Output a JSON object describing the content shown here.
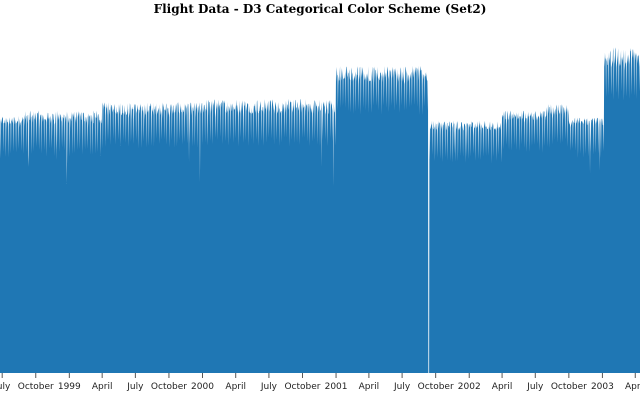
{
  "chart_data": {
    "type": "area",
    "title": "Flight Data - D3 Categorical Color Scheme (Set2)",
    "xlabel": "",
    "ylabel": "",
    "colors": {
      "fill": "#1f77b4"
    },
    "axis": {
      "x_start": "1998-06-25",
      "x_end": "2003-04-14",
      "y_range": [
        0,
        21
      ],
      "y_axis_shown": false,
      "grid": false
    },
    "ticks": [
      {
        "date": "1998-07-01",
        "label": "July"
      },
      {
        "date": "1998-10-01",
        "label": "October"
      },
      {
        "date": "1999-01-01",
        "label": "1999"
      },
      {
        "date": "1999-04-01",
        "label": "April"
      },
      {
        "date": "1999-07-01",
        "label": "July"
      },
      {
        "date": "1999-10-01",
        "label": "October"
      },
      {
        "date": "2000-01-01",
        "label": "2000"
      },
      {
        "date": "2000-04-01",
        "label": "April"
      },
      {
        "date": "2000-07-01",
        "label": "July"
      },
      {
        "date": "2000-10-01",
        "label": "October"
      },
      {
        "date": "2001-01-01",
        "label": "2001"
      },
      {
        "date": "2001-04-01",
        "label": "April"
      },
      {
        "date": "2001-07-01",
        "label": "July"
      },
      {
        "date": "2001-10-01",
        "label": "October"
      },
      {
        "date": "2002-01-01",
        "label": "2002"
      },
      {
        "date": "2002-04-01",
        "label": "April"
      },
      {
        "date": "2002-07-01",
        "label": "July"
      },
      {
        "date": "2002-10-01",
        "label": "October"
      },
      {
        "date": "2003-01-01",
        "label": "2003"
      },
      {
        "date": "2003-04-01",
        "label": "April"
      }
    ],
    "segments": [
      {
        "from": "1998-06-25",
        "to": "1998-08-31",
        "low": 14.9,
        "high": 15.5
      },
      {
        "from": "1998-09-01",
        "to": "1999-03-31",
        "low": 15.0,
        "high": 15.8
      },
      {
        "from": "1999-04-01",
        "to": "1999-12-31",
        "low": 15.5,
        "high": 16.3
      },
      {
        "from": "2000-01-01",
        "to": "2000-12-31",
        "low": 15.6,
        "high": 16.5
      },
      {
        "from": "2001-01-01",
        "to": "2001-09-10",
        "low": 17.5,
        "high": 18.5
      },
      {
        "from": "2001-09-11",
        "to": "2001-09-13",
        "low": 0.0,
        "high": 0.0
      },
      {
        "from": "2001-09-14",
        "to": "2002-03-31",
        "low": 14.6,
        "high": 15.2
      },
      {
        "from": "2002-04-01",
        "to": "2002-07-31",
        "low": 15.2,
        "high": 15.8
      },
      {
        "from": "2002-08-01",
        "to": "2002-09-30",
        "low": 15.5,
        "high": 16.2
      },
      {
        "from": "2002-10-01",
        "to": "2003-01-05",
        "low": 14.9,
        "high": 15.4
      },
      {
        "from": "2003-01-06",
        "to": "2003-04-14",
        "low": 18.4,
        "high": 19.6
      }
    ],
    "dips": [
      {
        "date": "1998-09-11",
        "value": 12.4
      },
      {
        "date": "1998-11-26",
        "value": 12.8
      },
      {
        "date": "1998-12-25",
        "value": 11.4
      },
      {
        "date": "1999-11-25",
        "value": 12.7
      },
      {
        "date": "1999-12-25",
        "value": 11.5
      },
      {
        "date": "2000-11-23",
        "value": 12.4
      },
      {
        "date": "2000-12-25",
        "value": 11.2
      },
      {
        "date": "2001-11-22",
        "value": 13.2
      },
      {
        "date": "2001-12-25",
        "value": 13.0
      },
      {
        "date": "2002-11-28",
        "value": 12.0
      },
      {
        "date": "2002-12-25",
        "value": 12.2
      }
    ]
  }
}
